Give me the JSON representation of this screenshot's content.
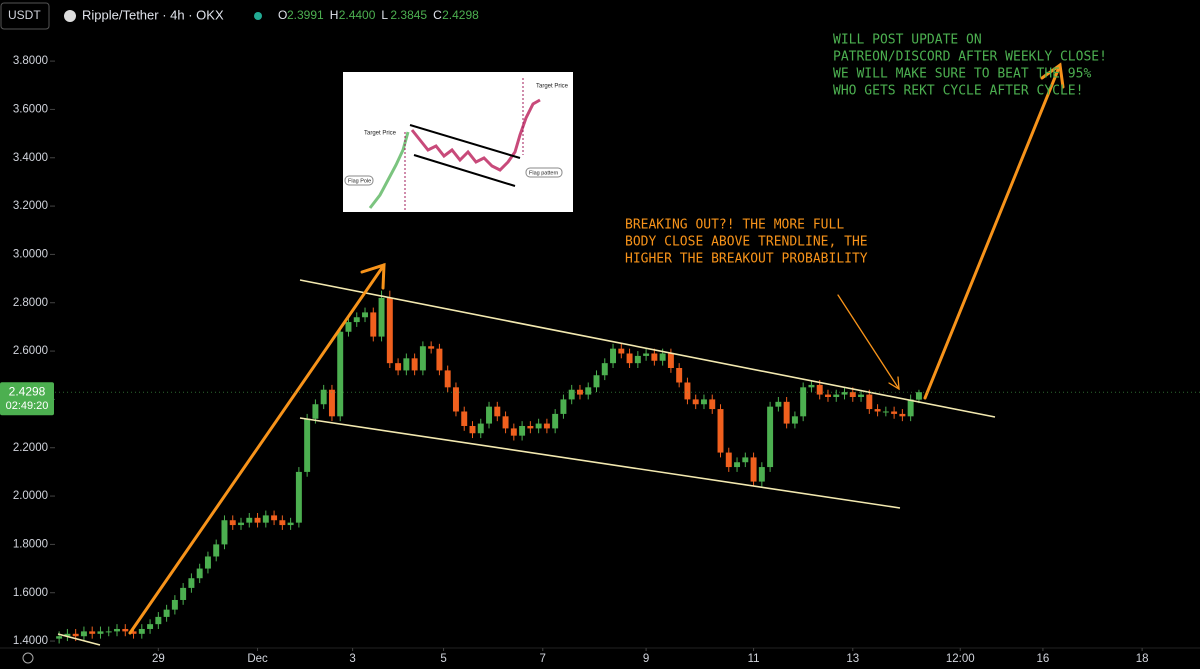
{
  "header": {
    "quote": "USDT",
    "symbol": "Ripple/Tether · 4h · OKX",
    "ohlc": [
      {
        "key": "O",
        "value": "2.3991"
      },
      {
        "key": "H",
        "value": "2.4400"
      },
      {
        "key": "L",
        "value": "2.3845"
      },
      {
        "key": "C",
        "value": "2.4298"
      }
    ]
  },
  "price_tag": {
    "price": "2.4298",
    "countdown": "02:49:20"
  },
  "annotations": {
    "green_note": [
      "WILL POST UPDATE ON",
      "PATREON/DISCORD AFTER WEEKLY CLOSE!",
      "WE WILL MAKE SURE TO BEAT THE 95%",
      "WHO GETS REKT CYCLE AFTER CYCLE!"
    ],
    "orange_note": [
      "BREAKING OUT?! THE MORE FULL",
      "BODY CLOSE ABOVE TRENDLINE, THE",
      "HIGHER THE BREAKOUT PROBABILITY"
    ]
  },
  "inset": {
    "target_left": "Target Price",
    "target_right": "Target Price",
    "flag_pole": "Flag Pole",
    "flag_pattern": "Flag pattern"
  },
  "chart_data": {
    "type": "candlestick",
    "up_color": "#4caf50",
    "down_color": "#f0601e",
    "open": [
      1.41,
      1.42,
      1.43,
      1.42,
      1.44,
      1.43,
      1.44,
      1.44,
      1.45,
      1.44,
      1.43,
      1.45,
      1.47,
      1.5,
      1.53,
      1.57,
      1.62,
      1.66,
      1.7,
      1.75,
      1.8,
      1.9,
      1.88,
      1.89,
      1.91,
      1.89,
      1.92,
      1.9,
      1.88,
      1.89,
      2.1,
      2.32,
      2.38,
      2.44,
      2.33,
      2.68,
      2.72,
      2.74,
      2.76,
      2.66,
      2.82,
      2.55,
      2.52,
      2.57,
      2.52,
      2.62,
      2.61,
      2.52,
      2.45,
      2.35,
      2.29,
      2.26,
      2.3,
      2.37,
      2.33,
      2.28,
      2.25,
      2.29,
      2.28,
      2.3,
      2.28,
      2.34,
      2.4,
      2.44,
      2.42,
      2.45,
      2.5,
      2.55,
      2.61,
      2.59,
      2.55,
      2.58,
      2.59,
      2.56,
      2.59,
      2.53,
      2.47,
      2.4,
      2.38,
      2.4,
      2.36,
      2.18,
      2.12,
      2.14,
      2.16,
      2.06,
      2.12,
      2.37,
      2.39,
      2.3,
      2.33,
      2.45,
      2.46,
      2.42,
      2.41,
      2.42,
      2.43,
      2.41,
      2.42,
      2.36,
      2.35,
      2.35,
      2.34,
      2.33,
      2.3991
    ],
    "high": [
      1.44,
      1.45,
      1.45,
      1.46,
      1.46,
      1.46,
      1.46,
      1.47,
      1.47,
      1.46,
      1.47,
      1.49,
      1.52,
      1.55,
      1.59,
      1.64,
      1.68,
      1.72,
      1.77,
      1.82,
      1.92,
      1.92,
      1.91,
      1.93,
      1.93,
      1.94,
      1.94,
      1.92,
      1.91,
      2.12,
      2.34,
      2.4,
      2.46,
      2.46,
      2.7,
      2.74,
      2.76,
      2.78,
      2.78,
      2.85,
      2.85,
      2.57,
      2.59,
      2.59,
      2.64,
      2.64,
      2.63,
      2.54,
      2.47,
      2.37,
      2.31,
      2.32,
      2.39,
      2.39,
      2.35,
      2.3,
      2.31,
      2.31,
      2.32,
      2.32,
      2.36,
      2.42,
      2.46,
      2.46,
      2.47,
      2.52,
      2.57,
      2.63,
      2.63,
      2.61,
      2.6,
      2.61,
      2.61,
      2.61,
      2.61,
      2.55,
      2.49,
      2.42,
      2.42,
      2.42,
      2.38,
      2.2,
      2.16,
      2.18,
      2.18,
      2.14,
      2.39,
      2.41,
      2.41,
      2.35,
      2.47,
      2.48,
      2.48,
      2.44,
      2.44,
      2.45,
      2.45,
      2.44,
      2.44,
      2.38,
      2.37,
      2.37,
      2.36,
      2.42,
      2.44
    ],
    "low": [
      1.39,
      1.4,
      1.4,
      1.4,
      1.41,
      1.41,
      1.42,
      1.42,
      1.42,
      1.41,
      1.41,
      1.43,
      1.45,
      1.48,
      1.51,
      1.55,
      1.6,
      1.64,
      1.68,
      1.73,
      1.78,
      1.86,
      1.86,
      1.87,
      1.87,
      1.87,
      1.88,
      1.86,
      1.86,
      1.87,
      2.08,
      2.3,
      2.36,
      2.31,
      2.31,
      2.66,
      2.7,
      2.72,
      2.64,
      2.64,
      2.53,
      2.5,
      2.5,
      2.5,
      2.5,
      2.59,
      2.5,
      2.43,
      2.33,
      2.27,
      2.24,
      2.24,
      2.28,
      2.31,
      2.26,
      2.23,
      2.23,
      2.26,
      2.26,
      2.26,
      2.26,
      2.32,
      2.38,
      2.4,
      2.4,
      2.43,
      2.48,
      2.53,
      2.57,
      2.53,
      2.53,
      2.56,
      2.54,
      2.54,
      2.51,
      2.45,
      2.38,
      2.36,
      2.36,
      2.34,
      2.16,
      2.1,
      2.1,
      2.12,
      2.04,
      2.04,
      2.1,
      2.35,
      2.28,
      2.28,
      2.31,
      2.43,
      2.4,
      2.39,
      2.39,
      2.4,
      2.39,
      2.39,
      2.34,
      2.33,
      2.33,
      2.32,
      2.31,
      2.31,
      2.3845
    ],
    "close": [
      1.42,
      1.43,
      1.42,
      1.44,
      1.43,
      1.44,
      1.44,
      1.45,
      1.44,
      1.43,
      1.45,
      1.47,
      1.5,
      1.53,
      1.57,
      1.62,
      1.66,
      1.7,
      1.75,
      1.8,
      1.9,
      1.88,
      1.89,
      1.91,
      1.89,
      1.92,
      1.9,
      1.88,
      1.89,
      2.1,
      2.32,
      2.38,
      2.44,
      2.33,
      2.68,
      2.72,
      2.74,
      2.76,
      2.66,
      2.82,
      2.55,
      2.52,
      2.57,
      2.52,
      2.62,
      2.61,
      2.52,
      2.45,
      2.35,
      2.29,
      2.26,
      2.3,
      2.37,
      2.33,
      2.28,
      2.25,
      2.29,
      2.28,
      2.3,
      2.28,
      2.34,
      2.4,
      2.44,
      2.42,
      2.45,
      2.5,
      2.55,
      2.61,
      2.59,
      2.55,
      2.58,
      2.59,
      2.56,
      2.59,
      2.53,
      2.47,
      2.4,
      2.38,
      2.4,
      2.36,
      2.18,
      2.12,
      2.14,
      2.16,
      2.06,
      2.12,
      2.37,
      2.39,
      2.3,
      2.33,
      2.45,
      2.46,
      2.42,
      2.41,
      2.42,
      2.43,
      2.41,
      2.42,
      2.36,
      2.35,
      2.35,
      2.34,
      2.33,
      2.4,
      2.4298
    ],
    "ylim": [
      1.363,
      3.908
    ],
    "yticks": [
      {
        "value": 1.4,
        "label": "1.4000"
      },
      {
        "value": 1.6,
        "label": "1.6000"
      },
      {
        "value": 1.8,
        "label": "1.8000"
      },
      {
        "value": 2.0,
        "label": "2.0000"
      },
      {
        "value": 2.2,
        "label": "2.2000"
      },
      {
        "value": 2.4,
        "label": "2.4000"
      },
      {
        "value": 2.6,
        "label": "2.6000"
      },
      {
        "value": 2.8,
        "label": "2.8000"
      },
      {
        "value": 3.0,
        "label": "3.0000"
      },
      {
        "value": 3.2,
        "label": "3.2000"
      },
      {
        "value": 3.4,
        "label": "3.4000"
      },
      {
        "value": 3.6,
        "label": "3.6000"
      },
      {
        "value": 3.8,
        "label": "3.8000"
      }
    ],
    "xlim": [
      -0.5,
      138
    ],
    "xticks": [
      {
        "value": 12,
        "label": "29"
      },
      {
        "value": 24,
        "label": "Dec"
      },
      {
        "value": 35.5,
        "label": "3"
      },
      {
        "value": 46.5,
        "label": "5"
      },
      {
        "value": 58.5,
        "label": "7"
      },
      {
        "value": 71,
        "label": "9"
      },
      {
        "value": 84,
        "label": "11"
      },
      {
        "value": 96,
        "label": "13"
      },
      {
        "value": 109,
        "label": "12:00"
      },
      {
        "value": 119,
        "label": "16"
      },
      {
        "value": 131,
        "label": "18"
      }
    ]
  }
}
